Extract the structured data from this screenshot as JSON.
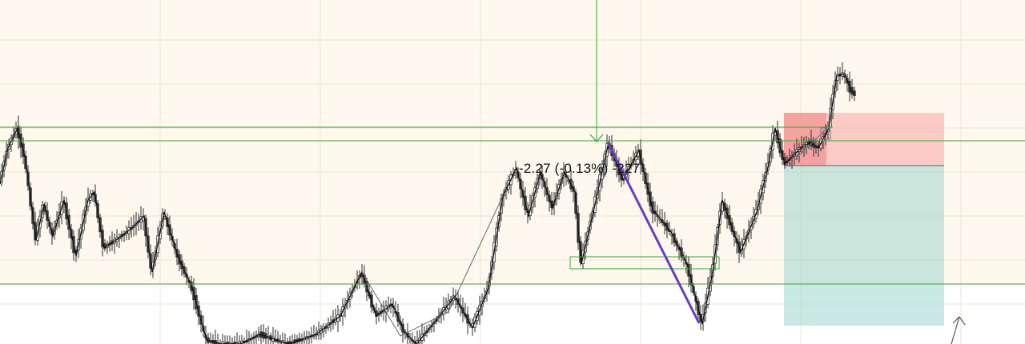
{
  "chart_data": {
    "type": "candlestick",
    "measure_label": "-2.27 (-0.13%) -227",
    "colors": {
      "zone_fill": "#fff8ee",
      "grid": "#ece4d8",
      "level_line": "#35a535",
      "stop_fill": "#f7a6a6",
      "target_fill": "#9fd6cc",
      "trend_line": "#6a3cc0",
      "candle": "#2b2b2b",
      "zigzag": "#111111"
    },
    "icons": [
      "down-arrow-icon",
      "cursor-arrow-icon"
    ]
  }
}
